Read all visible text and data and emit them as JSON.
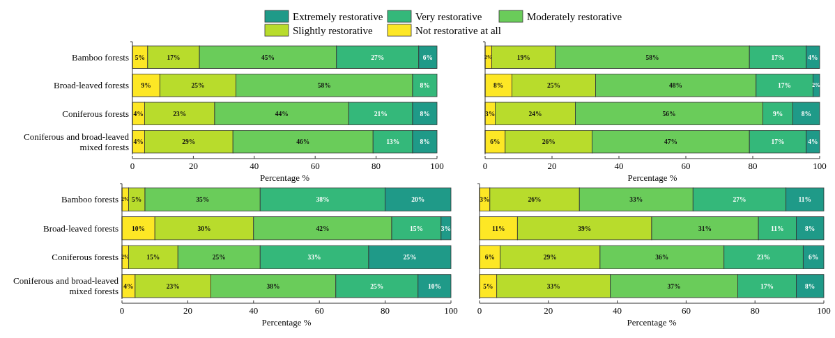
{
  "chart_data": [
    {
      "type": "bar",
      "orientation": "horizontal",
      "stacked": true,
      "legend": "top",
      "categories": [
        "Bamboo forests",
        "Broad-leaved forests",
        "Coniferous forests",
        "Coniferous and broad-leaved mixed forests"
      ],
      "xlabel": "Percentage %",
      "xlim": [
        0,
        100
      ],
      "xticks": [
        0,
        20,
        40,
        60,
        80,
        100
      ],
      "series": [
        {
          "name": "Not restorative at all",
          "color": "#fde725",
          "values": [
            5,
            9,
            4,
            4
          ],
          "value_labels": [
            "5%",
            "9%",
            "4%",
            "4%"
          ]
        },
        {
          "name": "Slightly restorative",
          "color": "#b8dc2c",
          "values": [
            17,
            25,
            23,
            29
          ],
          "value_labels": [
            "17%",
            "25%",
            "23%",
            "29%"
          ]
        },
        {
          "name": "Moderately restorative",
          "color": "#6acc5a",
          "values": [
            45,
            58,
            44,
            46
          ],
          "value_labels": [
            "45%",
            "58%",
            "44%",
            "46%"
          ]
        },
        {
          "name": "Very restorative",
          "color": "#34b87a",
          "values": [
            27,
            8,
            21,
            13
          ],
          "value_labels": [
            "27%",
            "8%",
            "21%",
            "13%"
          ]
        },
        {
          "name": "Extremely restorative",
          "color": "#1f9a88",
          "values": [
            6,
            0,
            8,
            8
          ],
          "value_labels": [
            "6%",
            null,
            "8%",
            "8%"
          ]
        }
      ]
    },
    {
      "type": "bar",
      "orientation": "horizontal",
      "stacked": true,
      "tick_labels": "x",
      "categories": [
        null,
        null,
        null,
        null
      ],
      "xlabel": "Percentage %",
      "xlim": [
        0,
        100
      ],
      "xticks": [
        0,
        20,
        40,
        60,
        80,
        100
      ],
      "series": [
        {
          "color": "#fde725",
          "values": [
            2,
            8,
            3,
            6
          ],
          "value_labels": [
            "2%",
            "8%",
            "3%",
            "6%"
          ]
        },
        {
          "color": "#b8dc2c",
          "values": [
            19,
            25,
            24,
            26
          ],
          "value_labels": [
            "19%",
            "25%",
            "24%",
            "26%"
          ]
        },
        {
          "color": "#6acc5a",
          "values": [
            58,
            48,
            56,
            47
          ],
          "value_labels": [
            "58%",
            "48%",
            "56%",
            "47%"
          ]
        },
        {
          "color": "#34b87a",
          "values": [
            17,
            17,
            9,
            17
          ],
          "value_labels": [
            "17%",
            "17%",
            "9%",
            "17%"
          ]
        },
        {
          "color": "#1f9a88",
          "values": [
            4,
            2,
            8,
            4
          ],
          "value_labels": [
            "4%",
            "2%",
            "8%",
            "4%"
          ]
        }
      ]
    },
    {
      "type": "bar",
      "orientation": "horizontal",
      "stacked": true,
      "categories": [
        "Bamboo forests",
        "Broad-leaved forests",
        "Coniferous forests",
        "Coniferous and broad-leaved mixed forests"
      ],
      "xlabel": "Percentage %",
      "xlim": [
        0,
        100
      ],
      "xticks": [
        0,
        20,
        40,
        60,
        80,
        100
      ],
      "series": [
        {
          "color": "#fde725",
          "values": [
            2,
            10,
            2,
            4
          ],
          "value_labels": [
            "2%",
            "10%",
            "2%",
            "4%"
          ]
        },
        {
          "color": "#b8dc2c",
          "values": [
            5,
            30,
            15,
            23
          ],
          "value_labels": [
            "5%",
            "30%",
            "15%",
            "23%"
          ]
        },
        {
          "color": "#6acc5a",
          "values": [
            35,
            42,
            25,
            38
          ],
          "value_labels": [
            "35%",
            "42%",
            "25%",
            "38%"
          ]
        },
        {
          "color": "#34b87a",
          "values": [
            38,
            15,
            33,
            25
          ],
          "value_labels": [
            "38%",
            "15%",
            "33%",
            "25%"
          ]
        },
        {
          "color": "#1f9a88",
          "values": [
            20,
            3,
            25,
            10
          ],
          "value_labels": [
            "20%",
            "3%",
            "25%",
            "10%"
          ]
        }
      ]
    },
    {
      "type": "bar",
      "orientation": "horizontal",
      "stacked": true,
      "tick_labels": "x",
      "categories": [
        null,
        null,
        null,
        null
      ],
      "xlabel": "Percentage %",
      "xlim": [
        0,
        100
      ],
      "xticks": [
        0,
        20,
        40,
        60,
        80,
        100
      ],
      "series": [
        {
          "color": "#fde725",
          "values": [
            3,
            11,
            6,
            5
          ],
          "value_labels": [
            "3%",
            "11%",
            "6%",
            "5%"
          ]
        },
        {
          "color": "#b8dc2c",
          "values": [
            26,
            39,
            29,
            33
          ],
          "value_labels": [
            "26%",
            "39%",
            "29%",
            "33%"
          ]
        },
        {
          "color": "#6acc5a",
          "values": [
            33,
            31,
            36,
            37
          ],
          "value_labels": [
            "33%",
            "31%",
            "36%",
            "37%"
          ]
        },
        {
          "color": "#34b87a",
          "values": [
            27,
            11,
            23,
            17
          ],
          "value_labels": [
            "27%",
            "11%",
            "23%",
            "17%"
          ]
        },
        {
          "color": "#1f9a88",
          "values": [
            11,
            8,
            6,
            8
          ],
          "value_labels": [
            "11%",
            "8%",
            "6%",
            "8%"
          ]
        }
      ]
    }
  ]
}
